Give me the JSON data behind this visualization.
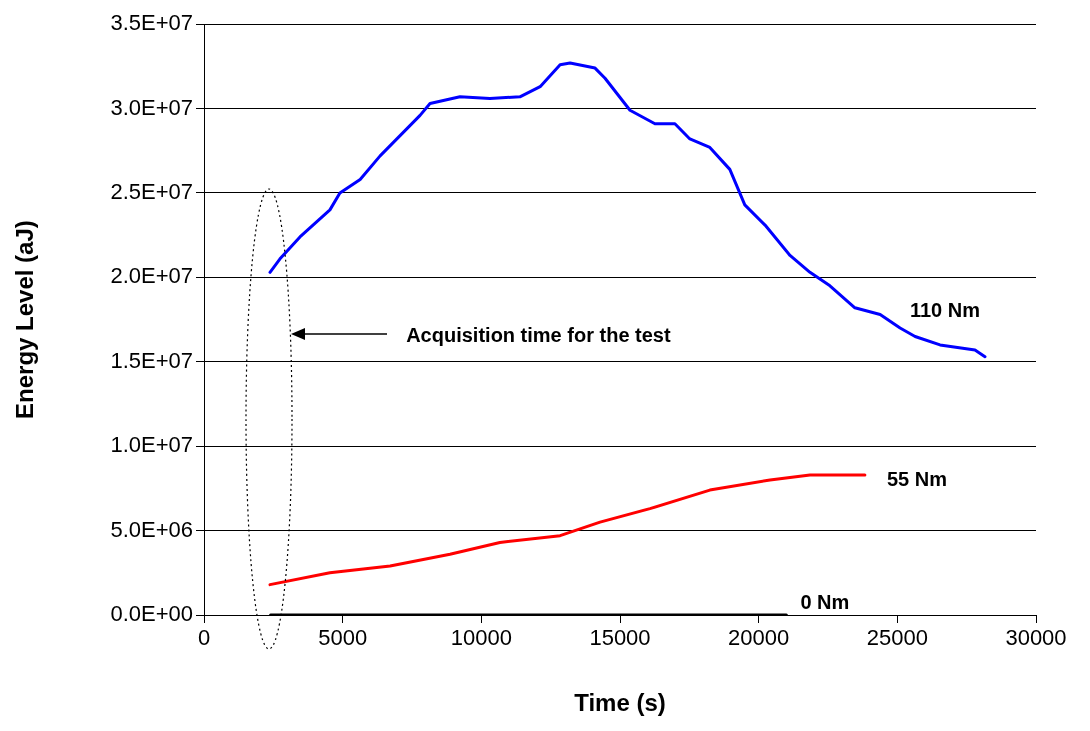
{
  "chart_data": {
    "type": "line",
    "xlabel": "Time (s)",
    "ylabel": "Energy Level (aJ)",
    "xlim": [
      0,
      30000
    ],
    "xticks": [
      0,
      5000,
      10000,
      15000,
      20000,
      25000,
      30000
    ],
    "ylim": [
      0,
      35000000
    ],
    "yticks": [
      {
        "value": 0,
        "label": "0.0E+00"
      },
      {
        "value": 5000000,
        "label": "5.0E+06"
      },
      {
        "value": 10000000,
        "label": "1.0E+07"
      },
      {
        "value": 15000000,
        "label": "1.5E+07"
      },
      {
        "value": 20000000,
        "label": "2.0E+07"
      },
      {
        "value": 25000000,
        "label": "2.5E+07"
      },
      {
        "value": 30000000,
        "label": "3.0E+07"
      },
      {
        "value": 35000000,
        "label": "3.5E+07"
      }
    ],
    "grid": "y",
    "legend": false,
    "marker": "none",
    "annotations": [
      "Acquisition time for the test"
    ],
    "series": [
      {
        "name": "110 Nm",
        "color": "#0000ff",
        "x": [
          2380,
          2740,
          3460,
          4540,
          4900,
          5630,
          6350,
          7070,
          7790,
          8150,
          9230,
          10310,
          11390,
          12120,
          12840,
          13200,
          14100,
          14460,
          15360,
          16260,
          16980,
          17520,
          18240,
          18960,
          19500,
          20230,
          21130,
          21850,
          22570,
          23470,
          24380,
          25100,
          25640,
          26540,
          27800,
          28160
        ],
        "values": [
          20300000,
          21100000,
          22400000,
          24000000,
          25000000,
          25800000,
          27200000,
          28400000,
          29600000,
          30300000,
          30700000,
          30600000,
          30700000,
          31300000,
          32600000,
          32700000,
          32400000,
          31800000,
          29900000,
          29100000,
          29100000,
          28200000,
          27700000,
          26400000,
          24300000,
          23100000,
          21300000,
          20300000,
          19500000,
          18200000,
          17800000,
          17000000,
          16500000,
          16000000,
          15700000,
          15300000
        ]
      },
      {
        "name": "55 Nm",
        "color": "#ff0000",
        "x": [
          2380,
          4540,
          6710,
          8870,
          10670,
          12840,
          14280,
          16080,
          18240,
          20410,
          21850,
          23830
        ],
        "values": [
          1800000,
          2500000,
          2900000,
          3600000,
          4300000,
          4700000,
          5500000,
          6300000,
          7400000,
          8000000,
          8300000,
          8300000
        ]
      },
      {
        "name": "0 Nm",
        "color": "#000000",
        "x": [
          2400,
          21000
        ],
        "values": [
          0,
          0
        ]
      }
    ]
  }
}
